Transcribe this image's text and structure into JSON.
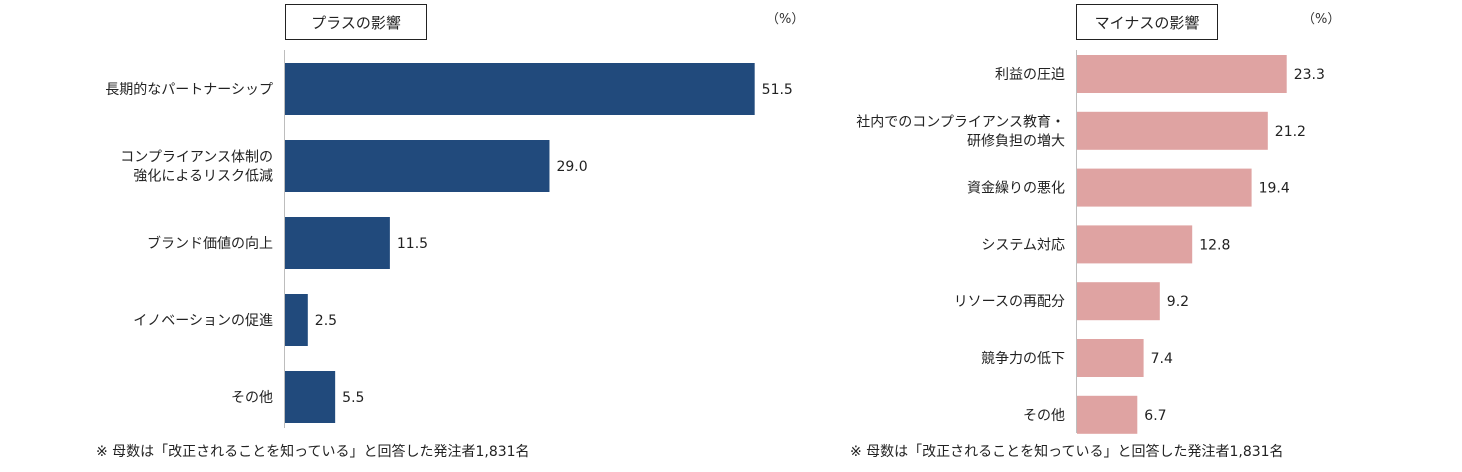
{
  "chart_data": [
    {
      "type": "bar",
      "orientation": "horizontal",
      "title": "プラスの影響",
      "unit": "（%）",
      "categories": [
        [
          "長期的なパートナーシップ"
        ],
        [
          "コンプライアンス体制の",
          "強化によるリスク低減"
        ],
        [
          "ブランド価値の向上"
        ],
        [
          "イノベーションの促進"
        ],
        [
          "その他"
        ]
      ],
      "values": [
        51.5,
        29.0,
        11.5,
        2.5,
        5.5
      ],
      "value_labels": [
        "51.5",
        "29.0",
        "11.5",
        "2.5",
        "5.5"
      ],
      "color": "#214a7c",
      "note": "※ 母数は「改正されることを知っている」と回答した発注者1,831名"
    },
    {
      "type": "bar",
      "orientation": "horizontal",
      "title": "マイナスの影響",
      "unit": "（%）",
      "categories": [
        [
          "利益の圧迫"
        ],
        [
          "社内でのコンプライアンス教育・",
          "研修負担の増大"
        ],
        [
          "資金繰りの悪化"
        ],
        [
          "システム対応"
        ],
        [
          "リソースの再配分"
        ],
        [
          "競争力の低下"
        ],
        [
          "その他"
        ]
      ],
      "values": [
        23.3,
        21.2,
        19.4,
        12.8,
        9.2,
        7.4,
        6.7
      ],
      "value_labels": [
        "23.3",
        "21.2",
        "19.4",
        "12.8",
        "9.2",
        "7.4",
        "6.7"
      ],
      "color": "#dfa3a2",
      "note": "※ 母数は「改正されることを知っている」と回答した発注者1,831名"
    }
  ]
}
